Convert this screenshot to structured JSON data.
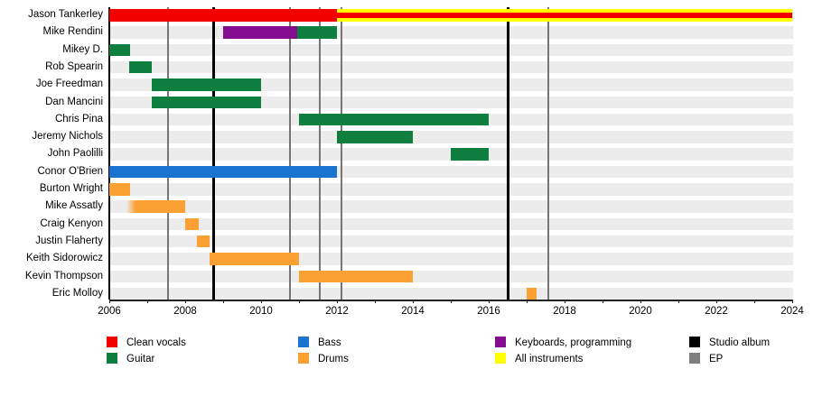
{
  "colors": {
    "red": "#f20000",
    "green": "#0e7f3e",
    "blue": "#1a73d1",
    "orange": "#fba134",
    "purple": "#830c8f",
    "yellow": "#ffff00",
    "black": "#000000",
    "gray": "#7f7f7f"
  },
  "ui": {
    "row_stripe": "#ececec",
    "axis": "#222222",
    "ep_line": "#767676",
    "album_line": "#000000",
    "background": "#ffffff"
  },
  "chart_data": {
    "type": "timeline",
    "title": "",
    "x_axis": {
      "min": 2006,
      "max": 2024,
      "major_tick_step": 2,
      "minor_tick_step": 1,
      "tick_labels": [
        "2006",
        "2008",
        "2010",
        "2012",
        "2014",
        "2016",
        "2018",
        "2020",
        "2022",
        "2024"
      ]
    },
    "rows": [
      {
        "name": "Jason Tankerley",
        "segments": [
          {
            "start": 2006,
            "end": 2012,
            "color": "red",
            "role": "Clean vocals"
          },
          {
            "start": 2012,
            "end": 2024,
            "color": "yellow",
            "stripe": "red",
            "role": "All instruments + Clean vocals"
          }
        ]
      },
      {
        "name": "Mike Rendini",
        "segments": [
          {
            "start": 2009,
            "end": 2010.95,
            "color": "purple",
            "role": "Keyboards, programming"
          },
          {
            "start": 2010.95,
            "end": 2012,
            "color": "green",
            "role": "Guitar"
          }
        ]
      },
      {
        "name": "Mikey D.",
        "segments": [
          {
            "start": 2006,
            "end": 2006.55,
            "color": "green",
            "role": "Guitar"
          }
        ]
      },
      {
        "name": "Rob Spearin",
        "segments": [
          {
            "start": 2006.53,
            "end": 2007.12,
            "color": "green",
            "role": "Guitar"
          }
        ]
      },
      {
        "name": "Joe Freedman",
        "segments": [
          {
            "start": 2007.12,
            "end": 2010,
            "color": "green",
            "role": "Guitar"
          }
        ]
      },
      {
        "name": "Dan Mancini",
        "segments": [
          {
            "start": 2007.12,
            "end": 2010,
            "color": "green",
            "role": "Guitar"
          }
        ]
      },
      {
        "name": "Chris Pina",
        "segments": [
          {
            "start": 2011,
            "end": 2016,
            "color": "green",
            "role": "Guitar"
          }
        ]
      },
      {
        "name": "Jeremy Nichols",
        "segments": [
          {
            "start": 2012,
            "end": 2014,
            "color": "green",
            "role": "Guitar"
          }
        ]
      },
      {
        "name": "John Paolilli",
        "segments": [
          {
            "start": 2015,
            "end": 2016,
            "color": "green",
            "role": "Guitar"
          }
        ]
      },
      {
        "name": "Conor O'Brien",
        "segments": [
          {
            "start": 2006,
            "end": 2012,
            "color": "blue",
            "role": "Bass"
          }
        ]
      },
      {
        "name": "Burton Wright",
        "segments": [
          {
            "start": 2006,
            "end": 2006.55,
            "color": "orange",
            "role": "Drums"
          }
        ]
      },
      {
        "name": "Mike Assatly",
        "segments": [
          {
            "start": 2006.45,
            "end": 2008,
            "color": "orange",
            "role": "Drums",
            "fade_in": true
          }
        ]
      },
      {
        "name": "Craig Kenyon",
        "segments": [
          {
            "start": 2008,
            "end": 2008.35,
            "color": "orange",
            "role": "Drums"
          }
        ]
      },
      {
        "name": "Justin Flaherty",
        "segments": [
          {
            "start": 2008.3,
            "end": 2008.65,
            "color": "orange",
            "role": "Drums"
          }
        ]
      },
      {
        "name": "Keith Sidorowicz",
        "segments": [
          {
            "start": 2008.65,
            "end": 2011,
            "color": "orange",
            "role": "Drums"
          }
        ]
      },
      {
        "name": "Kevin Thompson",
        "segments": [
          {
            "start": 2011,
            "end": 2014,
            "color": "orange",
            "role": "Drums"
          }
        ]
      },
      {
        "name": "Eric Molloy",
        "segments": [
          {
            "start": 2017,
            "end": 2017.25,
            "color": "orange",
            "role": "Drums"
          }
        ]
      }
    ],
    "events": [
      {
        "year": 2007.55,
        "type": "EP"
      },
      {
        "year": 2008.74,
        "type": "Studio album"
      },
      {
        "year": 2010.76,
        "type": "EP"
      },
      {
        "year": 2011.55,
        "type": "EP"
      },
      {
        "year": 2012.12,
        "type": "EP"
      },
      {
        "year": 2016.52,
        "type": "Studio album"
      },
      {
        "year": 2017.57,
        "type": "EP"
      }
    ],
    "legend": [
      {
        "label": "Clean vocals",
        "color": "red"
      },
      {
        "label": "Guitar",
        "color": "green"
      },
      {
        "label": "Bass",
        "color": "blue"
      },
      {
        "label": "Drums",
        "color": "orange"
      },
      {
        "label": "Keyboards, programming",
        "color": "purple"
      },
      {
        "label": "All instruments",
        "color": "yellow"
      },
      {
        "label": "Studio album",
        "color": "black"
      },
      {
        "label": "EP",
        "color": "gray"
      }
    ],
    "legend_position": "bottom"
  }
}
